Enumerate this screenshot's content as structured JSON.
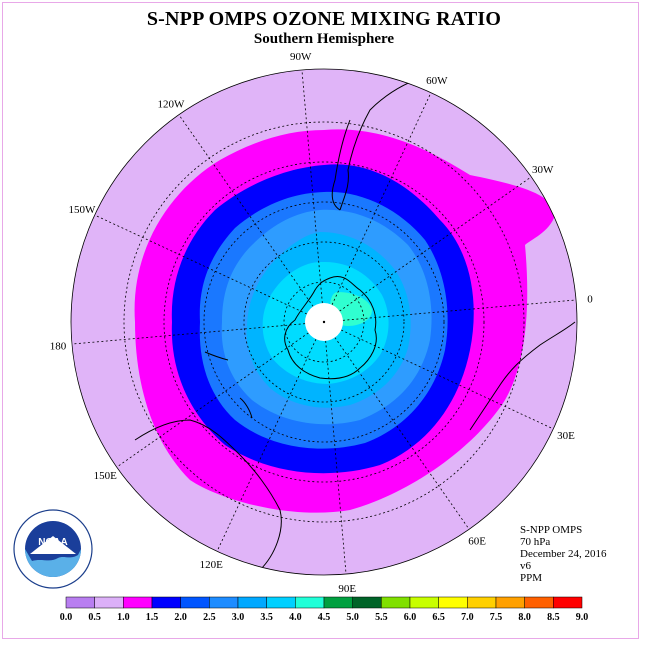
{
  "header": {
    "title": "S-NPP OMPS OZONE MIXING RATIO",
    "subtitle": "Southern Hemisphere"
  },
  "longitude_labels": [
    "90W",
    "60W",
    "30W",
    "0",
    "30E",
    "60E",
    "90E",
    "120E",
    "150E",
    "180",
    "150W",
    "120W"
  ],
  "info": {
    "instrument": "S-NPP OMPS",
    "level": "70 hPa",
    "date": "December 24, 2016",
    "version": "v6",
    "units": "PPM"
  },
  "logo": {
    "text": "NOAA",
    "ring_text": "NATIONAL OCEANIC AND ATMOSPHERIC ADMINISTRATION · U.S. DEPARTMENT OF COMMERCE"
  },
  "legend": {
    "labels": [
      "0.0",
      "0.5",
      "1.0",
      "1.5",
      "2.0",
      "2.5",
      "3.0",
      "3.5",
      "4.0",
      "4.5",
      "5.0",
      "5.5",
      "6.0",
      "6.5",
      "7.0",
      "7.5",
      "8.0",
      "8.5",
      "9.0"
    ],
    "colors": [
      "#b87ef0",
      "#dcb0f8",
      "#ff00ff",
      "#0000ff",
      "#0055ff",
      "#1e8cff",
      "#00a8ff",
      "#00d0ff",
      "#20ffd8",
      "#00a040",
      "#006428",
      "#80e000",
      "#c8ff00",
      "#ffff00",
      "#ffd000",
      "#ffa000",
      "#ff6000",
      "#ff0000",
      "#8b5a3c"
    ]
  },
  "map_colors": {
    "bin_0_5_1_0": "#e0b4f8",
    "bin_1_0_1_5": "#ff00ff",
    "bin_1_5_2_0": "#0000ff",
    "bin_2_0_2_5": "#1a78ff",
    "bin_2_5_3_0": "#2e9cff",
    "bin_3_0_3_5": "#00b4ff",
    "bin_3_5_4_0": "#00dcff",
    "bin_4_0_4_5": "#30ffd0",
    "pole_gap": "#ffffff"
  }
}
